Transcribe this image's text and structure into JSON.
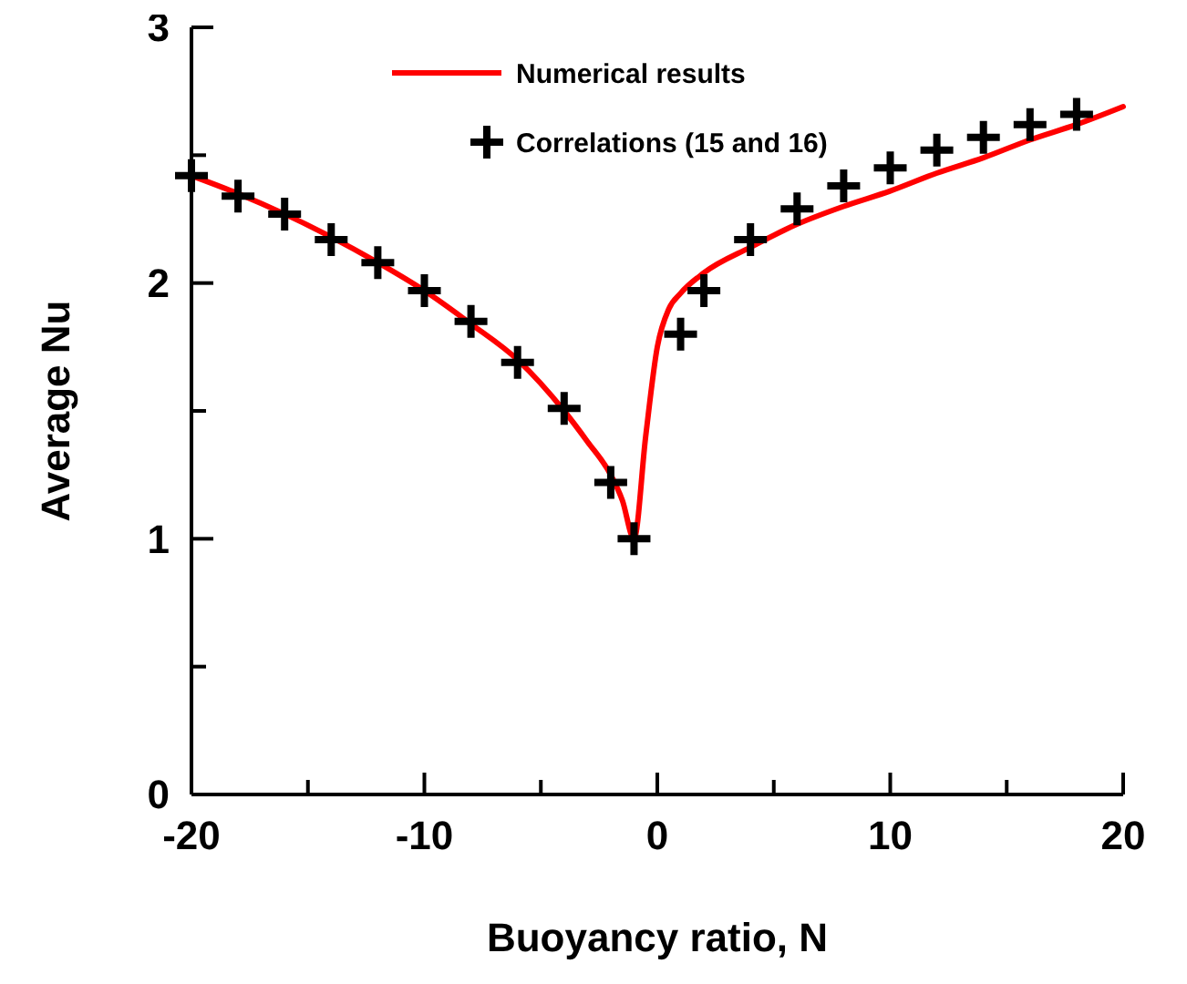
{
  "chart_data": {
    "type": "line",
    "xlabel": "Buoyancy ratio, N",
    "ylabel": "Average Nu",
    "xlim": [
      -20,
      20
    ],
    "ylim": [
      0,
      3
    ],
    "xticks": [
      -20,
      {
        "value": -15,
        "label": null
      },
      -10,
      {
        "value": -5,
        "label": null
      },
      0,
      {
        "value": 5,
        "label": null
      },
      10,
      {
        "value": 15,
        "label": null
      },
      20
    ],
    "yticks": [
      0,
      {
        "value": 0.5,
        "label": null
      },
      1,
      {
        "value": 1.5,
        "label": null
      },
      2,
      {
        "value": 2.5,
        "label": null
      },
      3
    ],
    "grid": false,
    "legend": "top left",
    "series": [
      {
        "name": "Numerical results",
        "color": "#ff0000",
        "line_style": "solid",
        "marker": "none",
        "x": [
          -20,
          -18,
          -16,
          -14,
          -12,
          -10,
          -8,
          -6,
          -4,
          -3,
          -2,
          -1.5,
          -1,
          -0.5,
          0,
          0.5,
          1,
          2,
          4,
          6,
          8,
          10,
          12,
          14,
          16,
          18,
          20
        ],
        "values": [
          2.42,
          2.35,
          2.27,
          2.18,
          2.08,
          1.97,
          1.84,
          1.7,
          1.5,
          1.38,
          1.25,
          1.15,
          1.0,
          1.4,
          1.75,
          1.9,
          1.96,
          2.04,
          2.14,
          2.23,
          2.3,
          2.36,
          2.43,
          2.49,
          2.56,
          2.62,
          2.69
        ]
      },
      {
        "name": "Correlations (15 and 16)",
        "type": "scatter",
        "color": "#000000",
        "marker": "cross",
        "x": [
          -20,
          -18,
          -16,
          -14,
          -12,
          -10,
          -8,
          -6,
          -4,
          -2,
          -1,
          1,
          2,
          4,
          6,
          8,
          10,
          12,
          14,
          16,
          18
        ],
        "values": [
          2.42,
          2.34,
          2.27,
          2.17,
          2.08,
          1.97,
          1.85,
          1.69,
          1.51,
          1.22,
          1.0,
          1.8,
          1.97,
          2.17,
          2.29,
          2.38,
          2.45,
          2.52,
          2.57,
          2.62,
          2.66
        ]
      }
    ]
  }
}
